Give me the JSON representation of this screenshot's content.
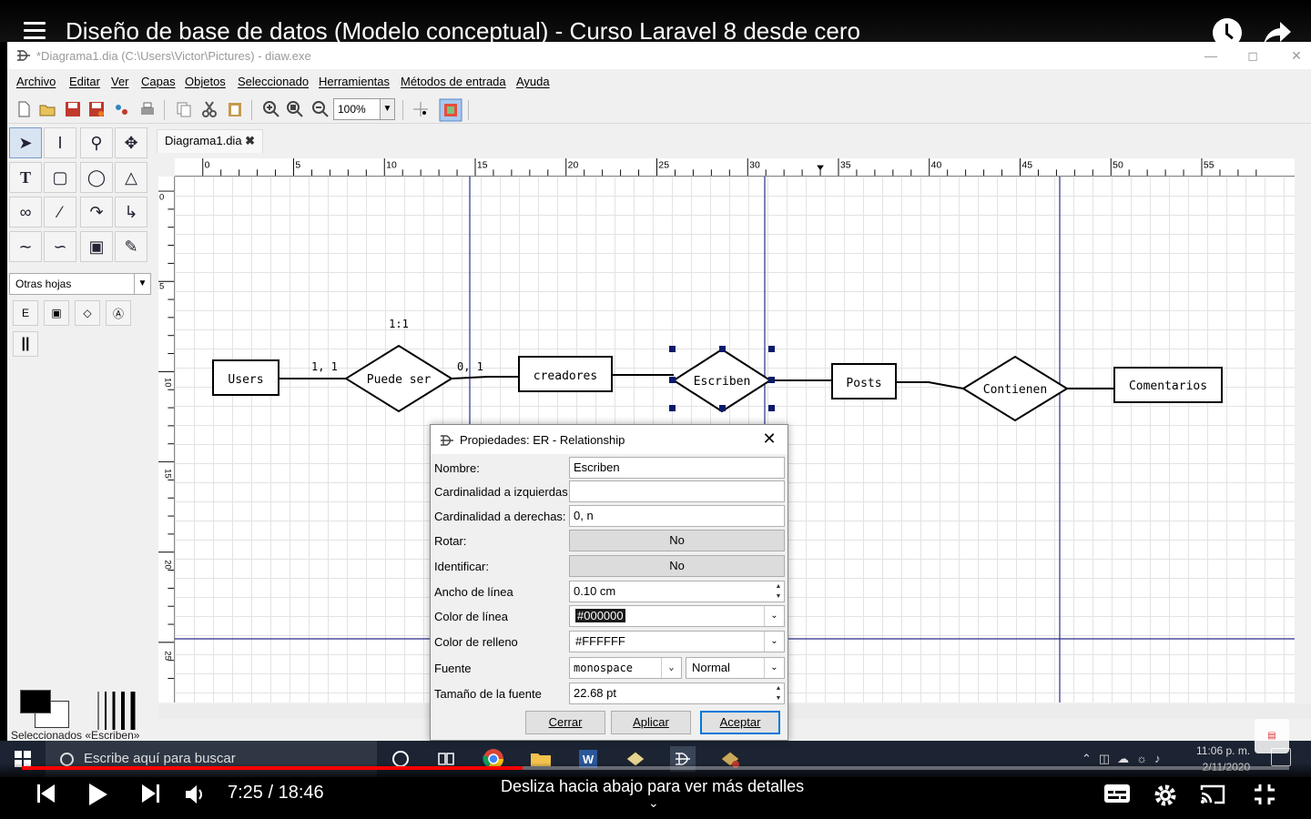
{
  "video": {
    "title": "Diseño de base de datos (Modelo conceptual) - Curso Laravel 8 desde cero",
    "time": "7:25 / 18:46",
    "progress": 0.395,
    "hint": "Desliza hacia abajo para ver más detalles",
    "accent": "#FF0000"
  },
  "window": {
    "title": "*Diagrama1.dia (C:\\Users\\Victor\\Pictures) - diaw.exe",
    "menu": [
      "Archivo",
      "Editar",
      "Ver",
      "Capas",
      "Objetos",
      "Seleccionado",
      "Herramientas",
      "Métodos de entrada",
      "Ayuda"
    ],
    "zoom": "100%",
    "tab": "Diagrama1.dia",
    "sheets": "Otras hojas",
    "status": "Seleccionados «Escriben»"
  },
  "ruler": {
    "h": [
      "0",
      "5",
      "10",
      "15",
      "20",
      "25",
      "30",
      "35",
      "40",
      "45",
      "50",
      "55"
    ],
    "v": [
      "0",
      "5",
      "10",
      "15",
      "20",
      "25"
    ]
  },
  "diagram": {
    "entities": [
      "Users",
      "creadores",
      "Posts",
      "Comentarios"
    ],
    "relationships": [
      "Puede ser",
      "Escriben",
      "Contienen"
    ],
    "cardinalities": [
      "1:1",
      "1, 1",
      "0, 1"
    ]
  },
  "dialog": {
    "title": "Propiedades: ER - Relationship",
    "labels": {
      "nombre": "Nombre:",
      "card_izq": "Cardinalidad a izquierdas:",
      "card_der": "Cardinalidad a derechas:",
      "rotar": "Rotar:",
      "identificar": "Identificar:",
      "ancho": "Ancho de línea",
      "color_linea": "Color de línea",
      "color_relleno": "Color de relleno",
      "fuente": "Fuente",
      "tam_fuente": "Tamaño de la fuente"
    },
    "values": {
      "nombre": "Escriben",
      "card_izq": "",
      "card_der": "0, n",
      "rotar": "No",
      "identificar": "No",
      "ancho": "0.10 cm",
      "color_linea": "#000000",
      "color_relleno": "#FFFFFF",
      "fuente": "monospace",
      "estilo_fuente": "Normal",
      "tam_fuente": "22.68 pt"
    },
    "buttons": {
      "cerrar": "Cerrar",
      "aplicar": "Aplicar",
      "aceptar": "Aceptar"
    }
  },
  "taskbar": {
    "search": "Escribe aquí para buscar",
    "time": "11:06 p. m.",
    "date": "2/11/2020"
  }
}
